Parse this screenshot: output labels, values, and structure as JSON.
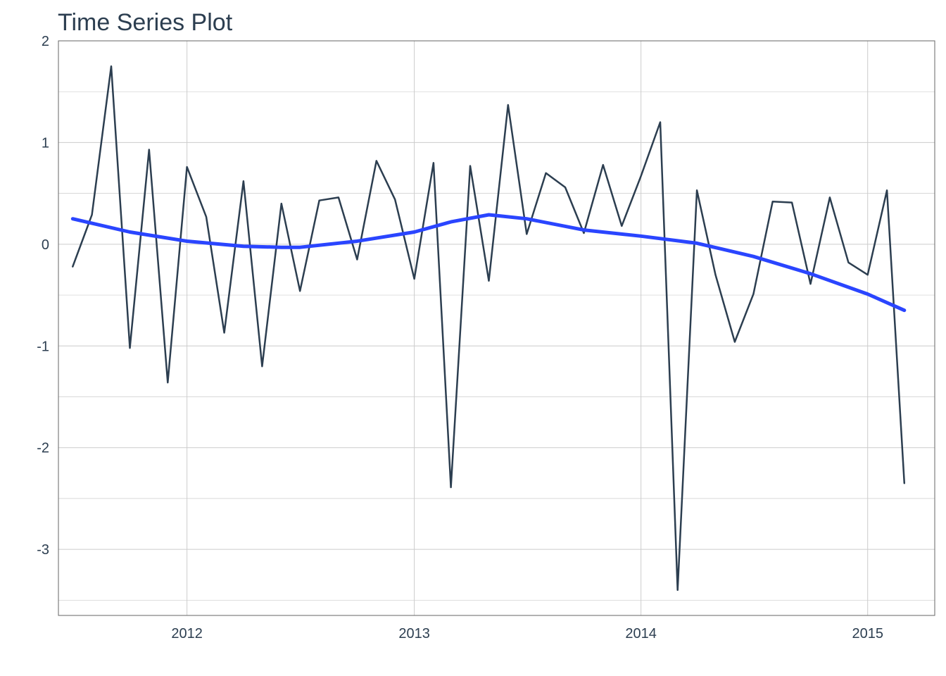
{
  "chart_data": {
    "type": "line",
    "title": "Time Series Plot",
    "xlabel": "",
    "ylabel": "",
    "x_ticks": [
      "2012",
      "2013",
      "2014",
      "2015"
    ],
    "y_ticks": [
      "2",
      "1",
      "0",
      "-1",
      "-2",
      "-3"
    ],
    "xlim": [
      "2011-06-08",
      "2015-04-19"
    ],
    "ylim": [
      -3.65,
      2
    ],
    "grid": true,
    "legend": "none",
    "colors": {
      "series": "#2c3e50",
      "smooth": "#2a45ff",
      "grid": "#cccccc"
    },
    "series": [
      {
        "dates": [
          "2011-07-01",
          "2011-08-01",
          "2011-09-01",
          "2011-10-01",
          "2011-11-01",
          "2011-12-01",
          "2012-01-01",
          "2012-02-01",
          "2012-03-01",
          "2012-04-01",
          "2012-05-01",
          "2012-06-01",
          "2012-07-01",
          "2012-08-01",
          "2012-09-01",
          "2012-10-01",
          "2012-11-01",
          "2012-12-01",
          "2013-01-01",
          "2013-02-01",
          "2013-03-01",
          "2013-04-01",
          "2013-05-01",
          "2013-06-01",
          "2013-07-01",
          "2013-08-01",
          "2013-09-01",
          "2013-10-01",
          "2013-11-01",
          "2013-12-01",
          "2014-01-01",
          "2014-02-01",
          "2014-03-01",
          "2014-04-01",
          "2014-05-01",
          "2014-06-01",
          "2014-07-01",
          "2014-08-01",
          "2014-09-01",
          "2014-10-01",
          "2014-11-01",
          "2014-12-01",
          "2015-01-01",
          "2015-02-01",
          "2015-03-01"
        ],
        "values": [
          -0.22,
          0.29,
          1.75,
          -1.02,
          0.93,
          -1.36,
          0.76,
          0.27,
          -0.87,
          0.62,
          -1.2,
          0.4,
          -0.46,
          0.43,
          0.46,
          -0.15,
          0.82,
          0.44,
          -0.34,
          0.8,
          -2.39,
          0.77,
          -0.36,
          1.37,
          0.1,
          0.7,
          0.56,
          0.11,
          0.78,
          0.18,
          0.67,
          1.2,
          -3.4,
          0.53,
          -0.3,
          -0.96,
          -0.49,
          0.42,
          0.41,
          -0.39,
          0.46,
          -0.18,
          -0.3,
          0.53,
          -2.35
        ]
      },
      {
        "dates": [
          "2011-07-01",
          "2011-10-01",
          "2012-01-01",
          "2012-04-01",
          "2012-06-01",
          "2012-07-01",
          "2012-10-01",
          "2013-01-01",
          "2013-03-01",
          "2013-05-01",
          "2013-07-01",
          "2013-10-01",
          "2014-01-01",
          "2014-04-01",
          "2014-07-01",
          "2014-10-01",
          "2015-01-01",
          "2015-03-01"
        ],
        "values": [
          0.25,
          0.12,
          0.03,
          -0.02,
          -0.03,
          -0.03,
          0.03,
          0.12,
          0.22,
          0.29,
          0.25,
          0.14,
          0.08,
          0.01,
          -0.12,
          -0.29,
          -0.49,
          -0.65
        ]
      }
    ]
  }
}
